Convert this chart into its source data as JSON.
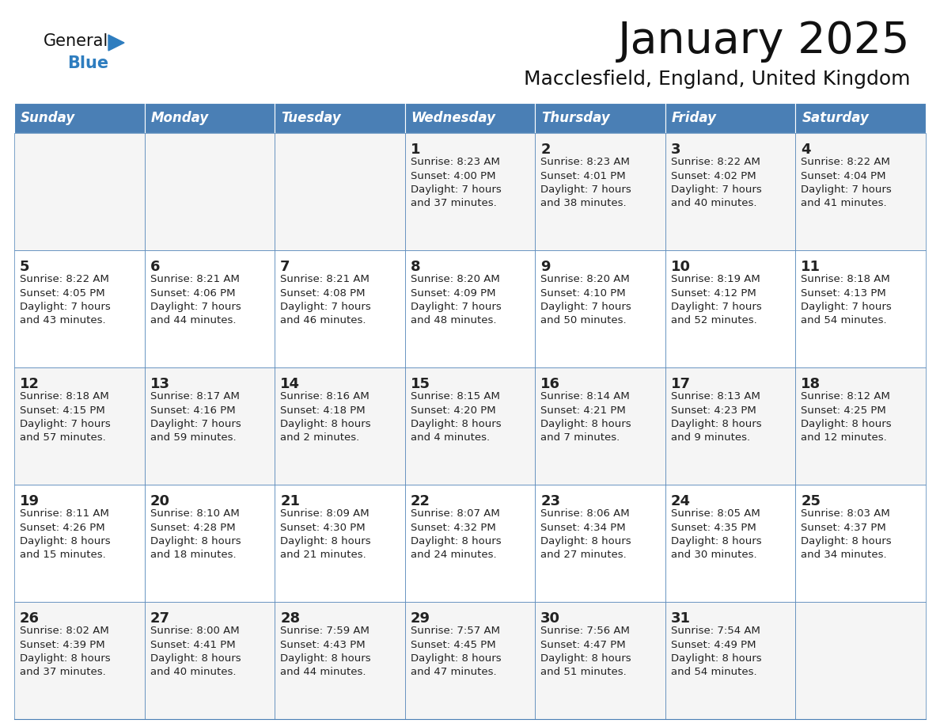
{
  "title": "January 2025",
  "subtitle": "Macclesfield, England, United Kingdom",
  "days_of_week": [
    "Sunday",
    "Monday",
    "Tuesday",
    "Wednesday",
    "Thursday",
    "Friday",
    "Saturday"
  ],
  "header_bg": "#4a7fb5",
  "header_text": "#ffffff",
  "row_bg_odd": "#f5f5f5",
  "row_bg_even": "#ffffff",
  "cell_border": "#4a7fb5",
  "day_num_color": "#222222",
  "info_text_color": "#222222",
  "title_color": "#111111",
  "subtitle_color": "#111111",
  "logo_general_color": "#111111",
  "logo_blue_color": "#2e7dbf",
  "calendar_data": [
    [
      {
        "day": null,
        "info": ""
      },
      {
        "day": null,
        "info": ""
      },
      {
        "day": null,
        "info": ""
      },
      {
        "day": 1,
        "info": "Sunrise: 8:23 AM\nSunset: 4:00 PM\nDaylight: 7 hours\nand 37 minutes."
      },
      {
        "day": 2,
        "info": "Sunrise: 8:23 AM\nSunset: 4:01 PM\nDaylight: 7 hours\nand 38 minutes."
      },
      {
        "day": 3,
        "info": "Sunrise: 8:22 AM\nSunset: 4:02 PM\nDaylight: 7 hours\nand 40 minutes."
      },
      {
        "day": 4,
        "info": "Sunrise: 8:22 AM\nSunset: 4:04 PM\nDaylight: 7 hours\nand 41 minutes."
      }
    ],
    [
      {
        "day": 5,
        "info": "Sunrise: 8:22 AM\nSunset: 4:05 PM\nDaylight: 7 hours\nand 43 minutes."
      },
      {
        "day": 6,
        "info": "Sunrise: 8:21 AM\nSunset: 4:06 PM\nDaylight: 7 hours\nand 44 minutes."
      },
      {
        "day": 7,
        "info": "Sunrise: 8:21 AM\nSunset: 4:08 PM\nDaylight: 7 hours\nand 46 minutes."
      },
      {
        "day": 8,
        "info": "Sunrise: 8:20 AM\nSunset: 4:09 PM\nDaylight: 7 hours\nand 48 minutes."
      },
      {
        "day": 9,
        "info": "Sunrise: 8:20 AM\nSunset: 4:10 PM\nDaylight: 7 hours\nand 50 minutes."
      },
      {
        "day": 10,
        "info": "Sunrise: 8:19 AM\nSunset: 4:12 PM\nDaylight: 7 hours\nand 52 minutes."
      },
      {
        "day": 11,
        "info": "Sunrise: 8:18 AM\nSunset: 4:13 PM\nDaylight: 7 hours\nand 54 minutes."
      }
    ],
    [
      {
        "day": 12,
        "info": "Sunrise: 8:18 AM\nSunset: 4:15 PM\nDaylight: 7 hours\nand 57 minutes."
      },
      {
        "day": 13,
        "info": "Sunrise: 8:17 AM\nSunset: 4:16 PM\nDaylight: 7 hours\nand 59 minutes."
      },
      {
        "day": 14,
        "info": "Sunrise: 8:16 AM\nSunset: 4:18 PM\nDaylight: 8 hours\nand 2 minutes."
      },
      {
        "day": 15,
        "info": "Sunrise: 8:15 AM\nSunset: 4:20 PM\nDaylight: 8 hours\nand 4 minutes."
      },
      {
        "day": 16,
        "info": "Sunrise: 8:14 AM\nSunset: 4:21 PM\nDaylight: 8 hours\nand 7 minutes."
      },
      {
        "day": 17,
        "info": "Sunrise: 8:13 AM\nSunset: 4:23 PM\nDaylight: 8 hours\nand 9 minutes."
      },
      {
        "day": 18,
        "info": "Sunrise: 8:12 AM\nSunset: 4:25 PM\nDaylight: 8 hours\nand 12 minutes."
      }
    ],
    [
      {
        "day": 19,
        "info": "Sunrise: 8:11 AM\nSunset: 4:26 PM\nDaylight: 8 hours\nand 15 minutes."
      },
      {
        "day": 20,
        "info": "Sunrise: 8:10 AM\nSunset: 4:28 PM\nDaylight: 8 hours\nand 18 minutes."
      },
      {
        "day": 21,
        "info": "Sunrise: 8:09 AM\nSunset: 4:30 PM\nDaylight: 8 hours\nand 21 minutes."
      },
      {
        "day": 22,
        "info": "Sunrise: 8:07 AM\nSunset: 4:32 PM\nDaylight: 8 hours\nand 24 minutes."
      },
      {
        "day": 23,
        "info": "Sunrise: 8:06 AM\nSunset: 4:34 PM\nDaylight: 8 hours\nand 27 minutes."
      },
      {
        "day": 24,
        "info": "Sunrise: 8:05 AM\nSunset: 4:35 PM\nDaylight: 8 hours\nand 30 minutes."
      },
      {
        "day": 25,
        "info": "Sunrise: 8:03 AM\nSunset: 4:37 PM\nDaylight: 8 hours\nand 34 minutes."
      }
    ],
    [
      {
        "day": 26,
        "info": "Sunrise: 8:02 AM\nSunset: 4:39 PM\nDaylight: 8 hours\nand 37 minutes."
      },
      {
        "day": 27,
        "info": "Sunrise: 8:00 AM\nSunset: 4:41 PM\nDaylight: 8 hours\nand 40 minutes."
      },
      {
        "day": 28,
        "info": "Sunrise: 7:59 AM\nSunset: 4:43 PM\nDaylight: 8 hours\nand 44 minutes."
      },
      {
        "day": 29,
        "info": "Sunrise: 7:57 AM\nSunset: 4:45 PM\nDaylight: 8 hours\nand 47 minutes."
      },
      {
        "day": 30,
        "info": "Sunrise: 7:56 AM\nSunset: 4:47 PM\nDaylight: 8 hours\nand 51 minutes."
      },
      {
        "day": 31,
        "info": "Sunrise: 7:54 AM\nSunset: 4:49 PM\nDaylight: 8 hours\nand 54 minutes."
      },
      {
        "day": null,
        "info": ""
      }
    ]
  ]
}
